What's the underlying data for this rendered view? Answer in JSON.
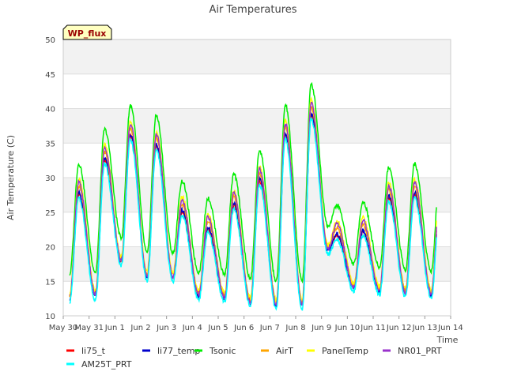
{
  "chart_data": {
    "type": "line",
    "title": "Air Temperatures",
    "ylabel": "Air Temperature (C)",
    "xlabel": "Time",
    "badge": "WP_flux",
    "ylim": [
      10,
      50
    ],
    "yticks": [
      10,
      15,
      20,
      25,
      30,
      35,
      40,
      45,
      50
    ],
    "xlim": [
      0,
      15
    ],
    "xticks": [
      {
        "v": 0,
        "label": "May 30"
      },
      {
        "v": 1,
        "label": "May 31"
      },
      {
        "v": 2,
        "label": "Jun 1"
      },
      {
        "v": 3,
        "label": "Jun 2"
      },
      {
        "v": 4,
        "label": "Jun 3"
      },
      {
        "v": 5,
        "label": "Jun 4"
      },
      {
        "v": 6,
        "label": "Jun 5"
      },
      {
        "v": 7,
        "label": "Jun 6"
      },
      {
        "v": 8,
        "label": "Jun 7"
      },
      {
        "v": 9,
        "label": "Jun 8"
      },
      {
        "v": 10,
        "label": "Jun 9"
      },
      {
        "v": 11,
        "label": "Jun 10"
      },
      {
        "v": 12,
        "label": "Jun 11"
      },
      {
        "v": 13,
        "label": "Jun 12"
      },
      {
        "v": 14,
        "label": "Jun 13"
      },
      {
        "v": 15,
        "label": "Jun 14"
      }
    ],
    "grid": true,
    "legend_position": "bottom",
    "x_start": 0.25,
    "x_end": 14.45,
    "daily_min": [
      12.5,
      12.8,
      17.8,
      15.5,
      15.5,
      12.8,
      12.5,
      11.8,
      11.5,
      11.5,
      19.5,
      14.0,
      13.5,
      13.2,
      13.0,
      15.5
    ],
    "daily_max": [
      27.5,
      32.5,
      36.0,
      34.5,
      25.0,
      22.5,
      26.0,
      29.5,
      36.0,
      39.0,
      21.5,
      22.0,
      27.0,
      27.5
    ],
    "series": [
      {
        "name": "li75_t",
        "color": "#ff0000",
        "max_off": 0.0,
        "min_off": 0.5
      },
      {
        "name": "li77_temp",
        "color": "#0000cc",
        "max_off": 0.3,
        "min_off": 0.0
      },
      {
        "name": "Tsonic",
        "color": "#00ee00",
        "max_off": 4.5,
        "min_off": 3.5
      },
      {
        "name": "AirT",
        "color": "#ffa500",
        "max_off": 1.2,
        "min_off": 0.4
      },
      {
        "name": "PanelTemp",
        "color": "#ffff00",
        "max_off": 2.2,
        "min_off": 0.8
      },
      {
        "name": "NR01_PRT",
        "color": "#9932cc",
        "max_off": 1.8,
        "min_off": 0.2
      },
      {
        "name": "AM25T_PRT",
        "color": "#00ffff",
        "max_off": -0.5,
        "min_off": -0.5
      }
    ]
  }
}
